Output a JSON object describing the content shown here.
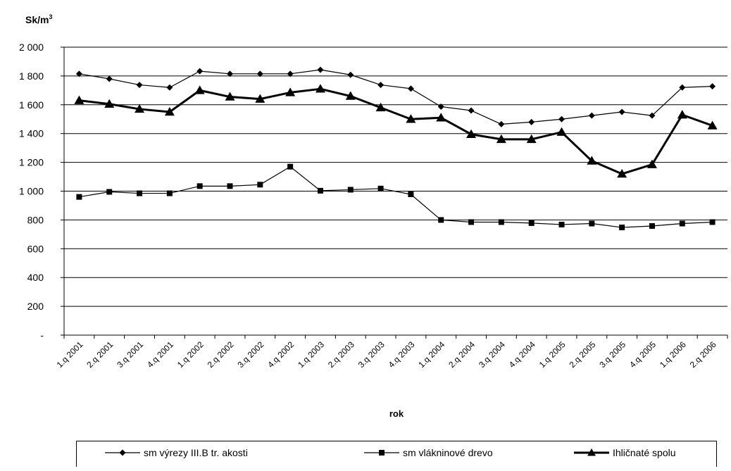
{
  "chart_data": {
    "type": "line",
    "ylabel": "Sk/m",
    "ylabel_sup": "3",
    "xlabel": "rok",
    "ylim": [
      0,
      2000
    ],
    "y_ticks": [
      {
        "value": 0,
        "label": "-"
      },
      {
        "value": 200,
        "label": "200"
      },
      {
        "value": 400,
        "label": "400"
      },
      {
        "value": 600,
        "label": "600"
      },
      {
        "value": 800,
        "label": "800"
      },
      {
        "value": 1000,
        "label": "1 000"
      },
      {
        "value": 1200,
        "label": "1 200"
      },
      {
        "value": 1400,
        "label": "1 400"
      },
      {
        "value": 1600,
        "label": "1 600"
      },
      {
        "value": 1800,
        "label": "1 800"
      },
      {
        "value": 2000,
        "label": "2 000"
      }
    ],
    "grid": true,
    "legend_position": "bottom",
    "categories": [
      "1.q 2001",
      "2.q 2001",
      "3.q 2001",
      "4.q 2001",
      "1.q 2002",
      "2.q 2002",
      "3.q 2002",
      "4.q 2002",
      "1.q 2003",
      "2.q 2003",
      "3.q 2003",
      "4.q 2003",
      "1.q 2004",
      "2.q 2004",
      "3.q 2004",
      "4.q 2004",
      "1.q 2005",
      "2.q 2005",
      "3.q 2005",
      "4.q 2005",
      "1.q 2006",
      "2.q 2006"
    ],
    "series": [
      {
        "name": "sm výrezy III.B tr. akosti",
        "marker": "diamond",
        "color": "#000000",
        "values": [
          1815,
          1780,
          1738,
          1720,
          1833,
          1815,
          1815,
          1815,
          1843,
          1808,
          1738,
          1712,
          1587,
          1560,
          1465,
          1480,
          1500,
          1525,
          1550,
          1525,
          1720,
          1728
        ]
      },
      {
        "name": "sm vlákninové drevo",
        "marker": "square",
        "color": "#000000",
        "values": [
          960,
          995,
          985,
          985,
          1035,
          1035,
          1045,
          1170,
          1003,
          1010,
          1018,
          978,
          800,
          785,
          785,
          778,
          768,
          775,
          748,
          758,
          775,
          785
        ]
      },
      {
        "name": "Ihličnaté spolu",
        "marker": "triangle",
        "color": "#000000",
        "values": [
          1630,
          1605,
          1570,
          1550,
          1700,
          1655,
          1640,
          1685,
          1710,
          1660,
          1580,
          1500,
          1510,
          1395,
          1360,
          1360,
          1410,
          1210,
          1120,
          1185,
          1530,
          1455
        ]
      }
    ]
  }
}
